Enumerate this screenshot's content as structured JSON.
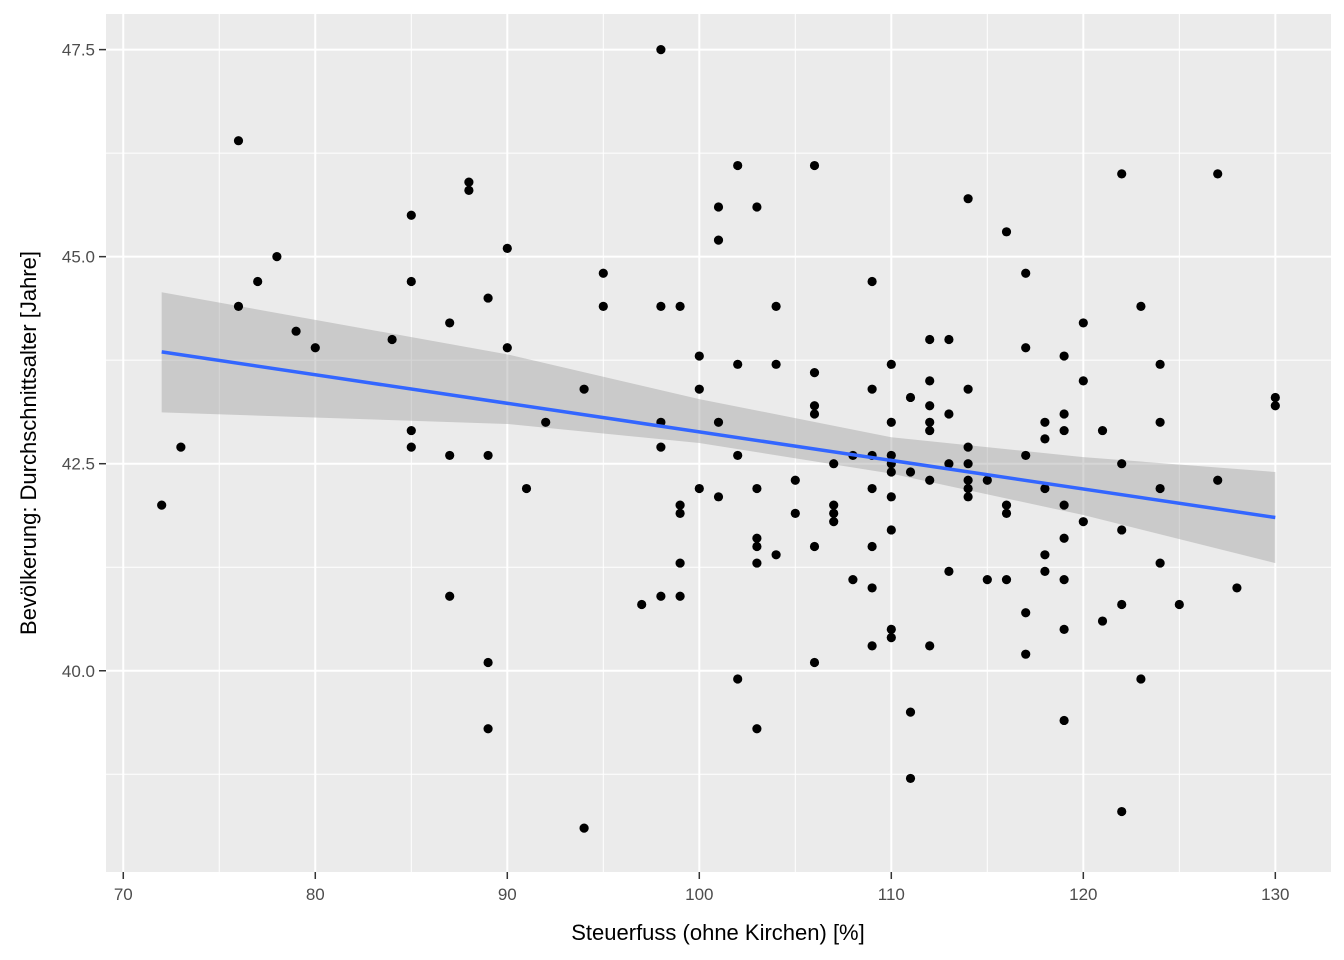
{
  "chart_data": {
    "type": "scatter",
    "xlabel": "Steuerfuss (ohne Kirchen) [%]",
    "ylabel": "Bevölkerung: Durchschnittsalter [Jahre]",
    "xlim": [
      69.1,
      132.9
    ],
    "ylim": [
      37.57,
      47.93
    ],
    "x_ticks": [
      70,
      80,
      90,
      100,
      110,
      120,
      130
    ],
    "y_ticks": [
      40.0,
      42.5,
      45.0,
      47.5
    ],
    "x_tick_labels": [
      "70",
      "80",
      "90",
      "100",
      "110",
      "120",
      "130"
    ],
    "y_tick_labels": [
      "40.0",
      "42.5",
      "45.0",
      "47.5"
    ],
    "grid": true,
    "colors": {
      "panel": "#EBEBEB",
      "grid": "#FFFFFF",
      "points": "#000000",
      "trend": "#3366FF",
      "band": "#999999"
    },
    "points": [
      [
        72,
        42.0
      ],
      [
        73,
        42.7
      ],
      [
        76,
        46.4
      ],
      [
        76,
        44.4
      ],
      [
        77,
        44.7
      ],
      [
        78,
        45.0
      ],
      [
        79,
        44.1
      ],
      [
        80,
        43.9
      ],
      [
        84,
        44.0
      ],
      [
        85,
        45.5
      ],
      [
        85,
        44.7
      ],
      [
        85,
        42.9
      ],
      [
        85,
        42.7
      ],
      [
        87,
        44.2
      ],
      [
        87,
        42.6
      ],
      [
        87,
        40.9
      ],
      [
        88,
        45.9
      ],
      [
        88,
        45.8
      ],
      [
        89,
        44.5
      ],
      [
        89,
        42.6
      ],
      [
        89,
        40.1
      ],
      [
        89,
        39.3
      ],
      [
        90,
        45.1
      ],
      [
        90,
        43.9
      ],
      [
        91,
        42.2
      ],
      [
        92,
        43.0
      ],
      [
        94,
        43.4
      ],
      [
        94,
        38.1
      ],
      [
        95,
        44.8
      ],
      [
        95,
        44.4
      ],
      [
        97,
        40.8
      ],
      [
        98,
        47.5
      ],
      [
        98,
        44.4
      ],
      [
        98,
        43.0
      ],
      [
        98,
        42.7
      ],
      [
        98,
        40.9
      ],
      [
        99,
        44.4
      ],
      [
        99,
        42.0
      ],
      [
        99,
        41.9
      ],
      [
        99,
        41.3
      ],
      [
        99,
        40.9
      ],
      [
        100,
        43.8
      ],
      [
        100,
        43.4
      ],
      [
        100,
        42.2
      ],
      [
        101,
        45.6
      ],
      [
        101,
        45.2
      ],
      [
        101,
        43.0
      ],
      [
        101,
        42.1
      ],
      [
        102,
        46.1
      ],
      [
        102,
        43.7
      ],
      [
        102,
        42.6
      ],
      [
        102,
        39.9
      ],
      [
        103,
        45.6
      ],
      [
        103,
        42.2
      ],
      [
        103,
        41.6
      ],
      [
        103,
        41.5
      ],
      [
        103,
        41.3
      ],
      [
        103,
        39.3
      ],
      [
        104,
        44.4
      ],
      [
        104,
        43.7
      ],
      [
        104,
        41.4
      ],
      [
        105,
        42.3
      ],
      [
        105,
        41.9
      ],
      [
        106,
        46.1
      ],
      [
        106,
        43.6
      ],
      [
        106,
        43.2
      ],
      [
        106,
        43.1
      ],
      [
        106,
        41.5
      ],
      [
        106,
        40.1
      ],
      [
        107,
        42.5
      ],
      [
        107,
        42.0
      ],
      [
        107,
        41.9
      ],
      [
        107,
        41.8
      ],
      [
        108,
        42.6
      ],
      [
        108,
        41.1
      ],
      [
        109,
        44.7
      ],
      [
        109,
        43.4
      ],
      [
        109,
        42.6
      ],
      [
        109,
        42.2
      ],
      [
        109,
        41.5
      ],
      [
        109,
        41.0
      ],
      [
        109,
        40.3
      ],
      [
        110,
        43.7
      ],
      [
        110,
        43.0
      ],
      [
        110,
        42.6
      ],
      [
        110,
        42.5
      ],
      [
        110,
        42.4
      ],
      [
        110,
        42.1
      ],
      [
        110,
        41.7
      ],
      [
        110,
        40.5
      ],
      [
        110,
        40.4
      ],
      [
        111,
        43.3
      ],
      [
        111,
        42.4
      ],
      [
        111,
        39.5
      ],
      [
        111,
        38.7
      ],
      [
        112,
        44.0
      ],
      [
        112,
        43.5
      ],
      [
        112,
        43.2
      ],
      [
        112,
        43.0
      ],
      [
        112,
        42.9
      ],
      [
        112,
        42.3
      ],
      [
        112,
        40.3
      ],
      [
        113,
        44.0
      ],
      [
        113,
        43.1
      ],
      [
        113,
        42.5
      ],
      [
        113,
        41.2
      ],
      [
        114,
        45.7
      ],
      [
        114,
        43.4
      ],
      [
        114,
        42.7
      ],
      [
        114,
        42.5
      ],
      [
        114,
        42.3
      ],
      [
        114,
        42.2
      ],
      [
        114,
        42.1
      ],
      [
        115,
        42.3
      ],
      [
        115,
        41.1
      ],
      [
        116,
        45.3
      ],
      [
        116,
        42.0
      ],
      [
        116,
        41.9
      ],
      [
        116,
        41.1
      ],
      [
        117,
        44.8
      ],
      [
        117,
        43.9
      ],
      [
        117,
        42.6
      ],
      [
        117,
        40.7
      ],
      [
        117,
        40.2
      ],
      [
        118,
        43.0
      ],
      [
        118,
        42.8
      ],
      [
        118,
        42.2
      ],
      [
        118,
        41.4
      ],
      [
        118,
        41.2
      ],
      [
        119,
        43.8
      ],
      [
        119,
        43.1
      ],
      [
        119,
        42.9
      ],
      [
        119,
        42.0
      ],
      [
        119,
        41.6
      ],
      [
        119,
        41.1
      ],
      [
        119,
        40.5
      ],
      [
        119,
        39.4
      ],
      [
        120,
        44.2
      ],
      [
        120,
        43.5
      ],
      [
        120,
        41.8
      ],
      [
        121,
        42.9
      ],
      [
        121,
        40.6
      ],
      [
        122,
        46.0
      ],
      [
        122,
        42.5
      ],
      [
        122,
        41.7
      ],
      [
        122,
        40.8
      ],
      [
        122,
        38.3
      ],
      [
        123,
        44.4
      ],
      [
        123,
        39.9
      ],
      [
        124,
        43.7
      ],
      [
        124,
        43.0
      ],
      [
        124,
        42.2
      ],
      [
        124,
        41.3
      ],
      [
        125,
        40.8
      ],
      [
        127,
        46.0
      ],
      [
        127,
        42.3
      ],
      [
        128,
        41.0
      ],
      [
        130,
        43.3
      ],
      [
        130,
        43.2
      ]
    ],
    "trend_line": {
      "method": "lm",
      "x": [
        72,
        130
      ],
      "y": [
        43.85,
        41.85
      ]
    },
    "confidence_band": {
      "x": [
        72,
        90,
        100,
        110,
        120,
        130
      ],
      "upper": [
        44.57,
        43.82,
        43.28,
        42.82,
        42.58,
        42.4
      ],
      "lower": [
        43.12,
        42.98,
        42.75,
        42.38,
        41.88,
        41.3
      ]
    }
  }
}
